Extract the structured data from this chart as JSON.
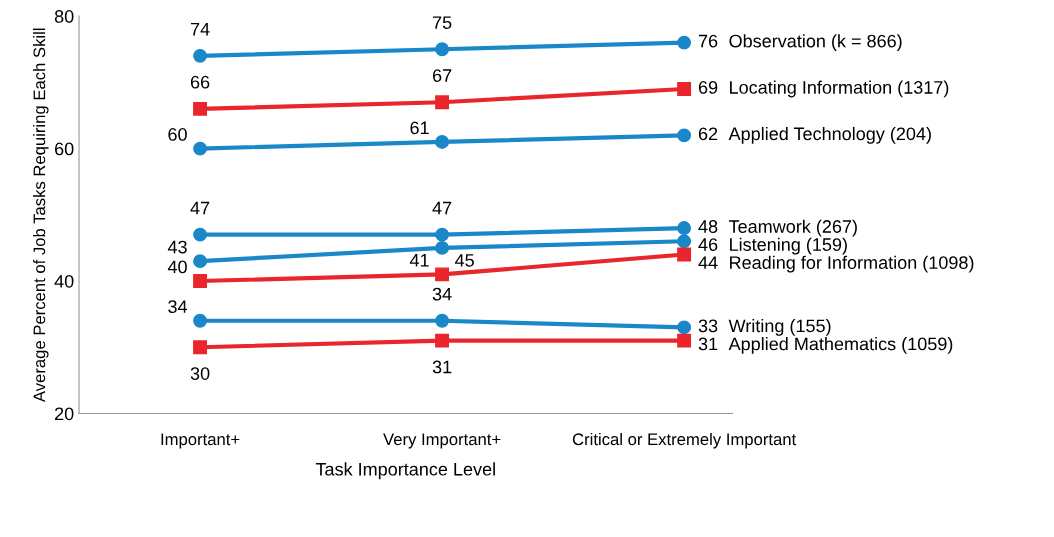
{
  "chart_data": {
    "type": "line",
    "xlabel": "Task Importance Level",
    "ylabel": "Average Percent of Job Tasks Requiring Each Skill",
    "categories": [
      "Important+",
      "Very Important+",
      "Critical or Extremely Important"
    ],
    "ylim": [
      20,
      80
    ],
    "yticks": [
      20,
      40,
      60,
      80
    ],
    "grid": false,
    "data_labels": true,
    "series": [
      {
        "name": "Observation (k = 866)",
        "color": "#1a87c9",
        "marker": "circle",
        "values": [
          74,
          75,
          76
        ]
      },
      {
        "name": "Locating Information (1317)",
        "color": "#e8262c",
        "marker": "square",
        "values": [
          66,
          67,
          69
        ]
      },
      {
        "name": "Applied Technology (204)",
        "color": "#1a87c9",
        "marker": "circle",
        "values": [
          60,
          61,
          62
        ]
      },
      {
        "name": "Teamwork (267)",
        "color": "#1a87c9",
        "marker": "circle",
        "values": [
          47,
          47,
          48
        ]
      },
      {
        "name": "Listening (159)",
        "color": "#1a87c9",
        "marker": "circle",
        "values": [
          43,
          45,
          46
        ]
      },
      {
        "name": "Reading for Information (1098)",
        "color": "#e8262c",
        "marker": "square",
        "values": [
          40,
          41,
          44
        ]
      },
      {
        "name": "Writing (155)",
        "color": "#1a87c9",
        "marker": "circle",
        "values": [
          34,
          34,
          33
        ]
      },
      {
        "name": "Applied Mathematics (1059)",
        "color": "#e8262c",
        "marker": "square",
        "values": [
          30,
          31,
          31
        ]
      }
    ]
  }
}
